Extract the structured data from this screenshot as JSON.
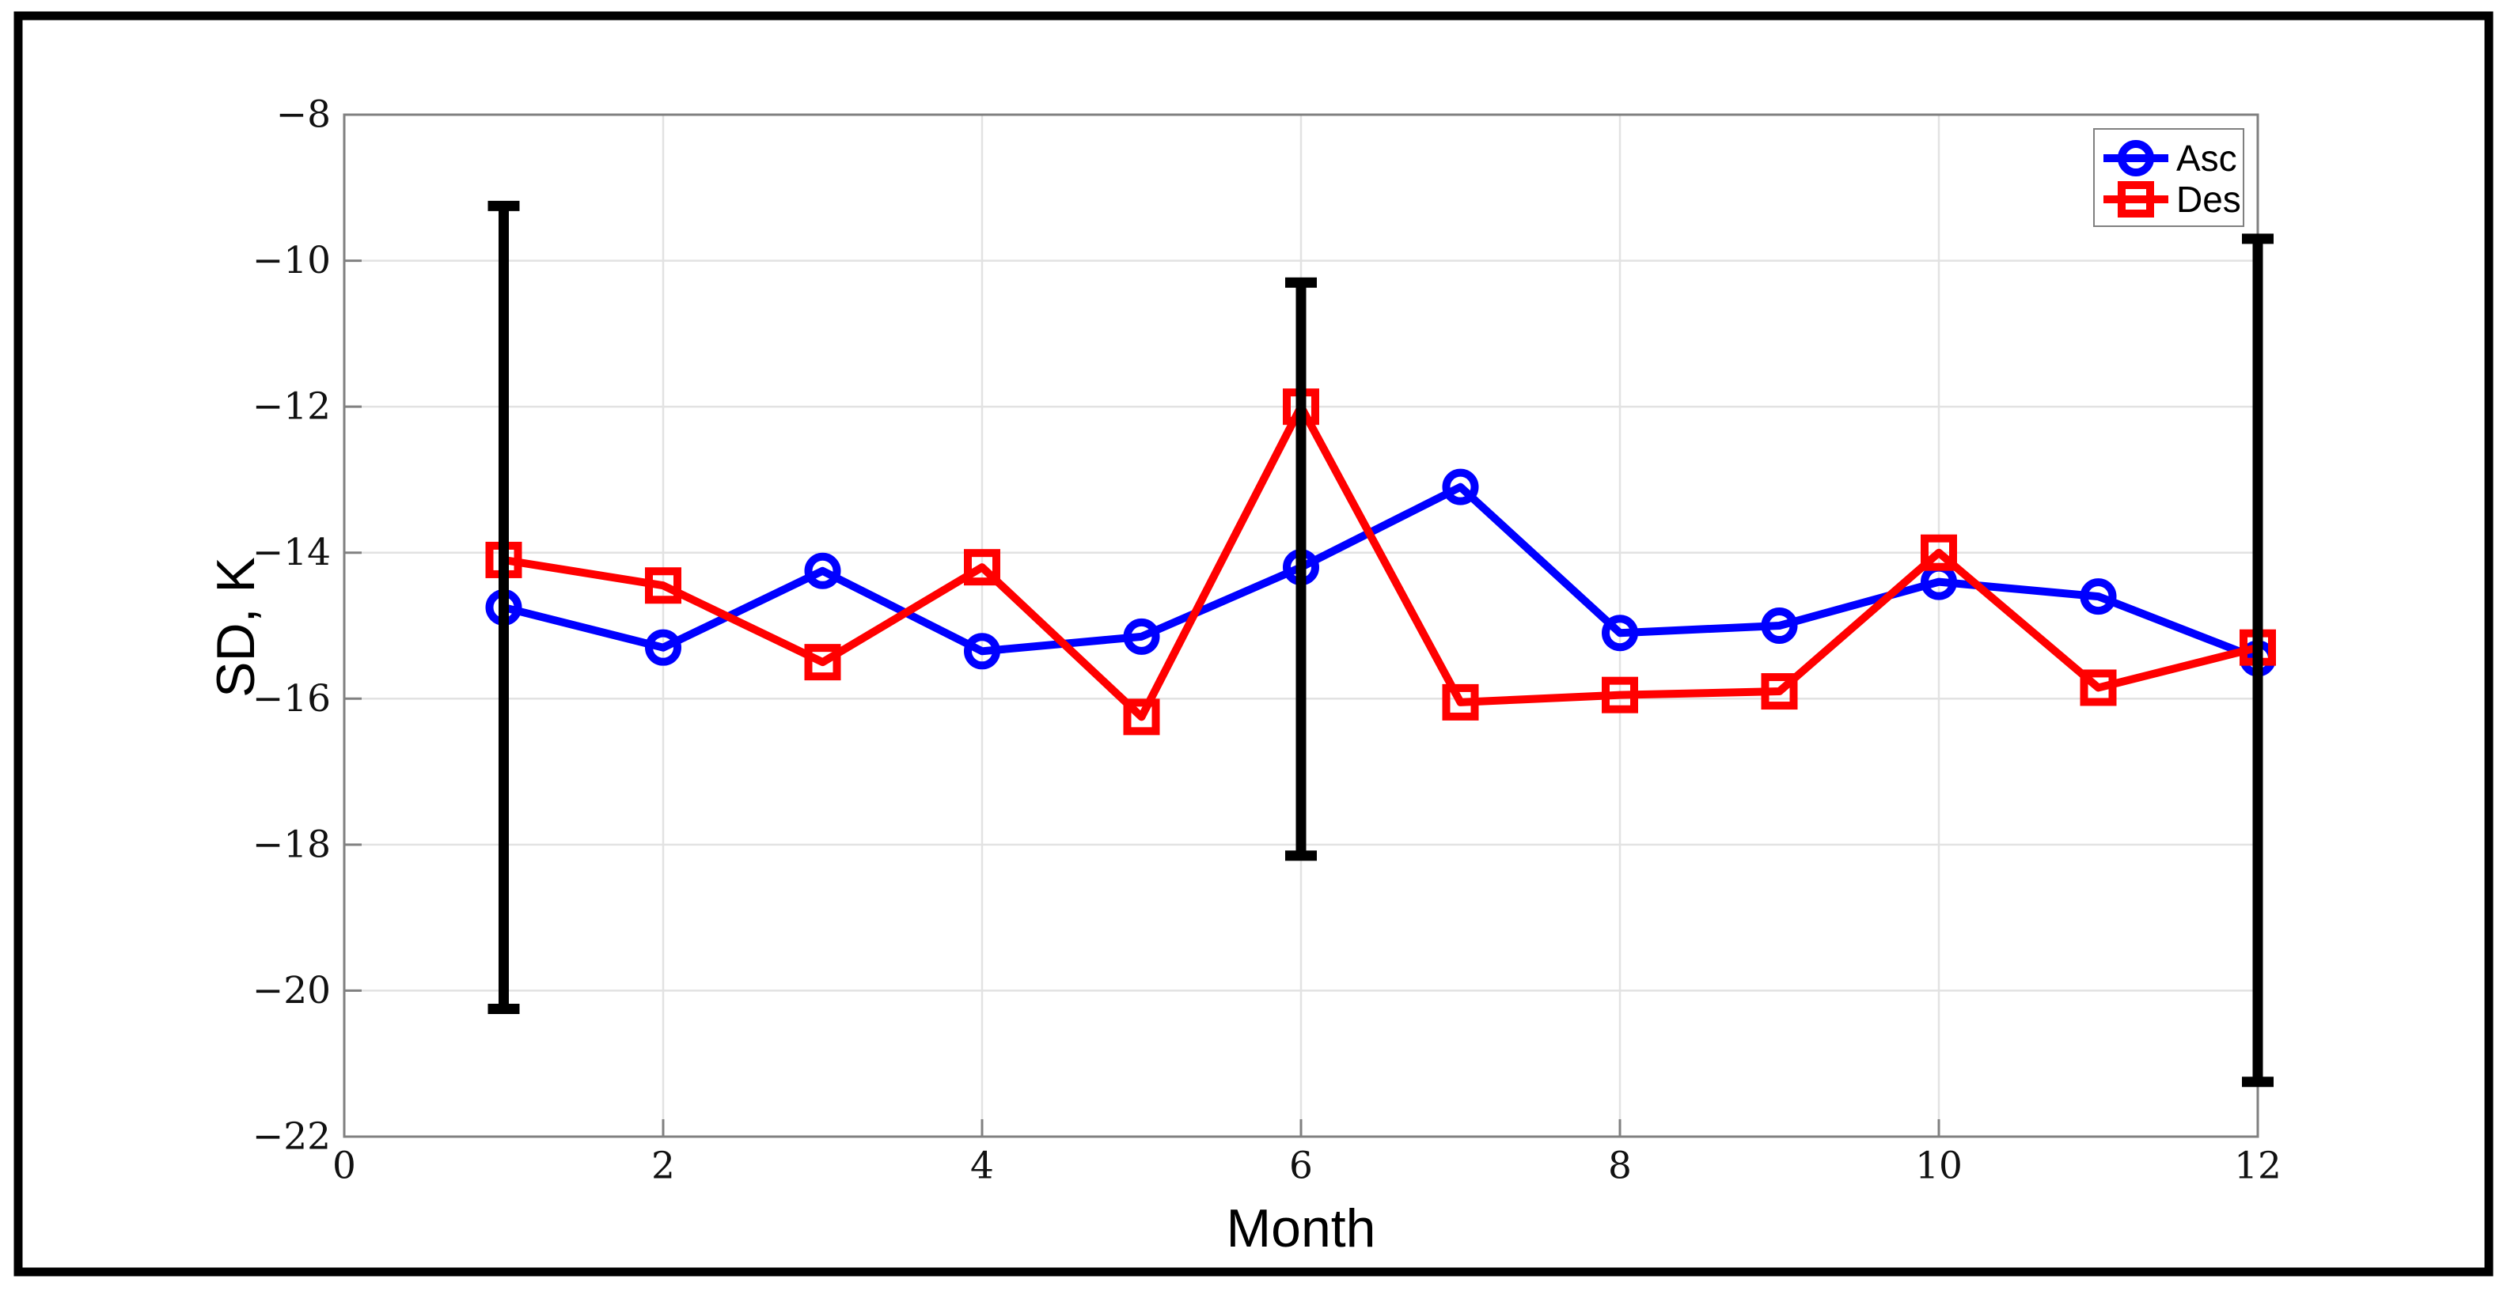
{
  "figure": {
    "background": "#ffffff",
    "border_color": "#000000"
  },
  "chart_data": {
    "type": "line",
    "title": "",
    "xlabel": "Month",
    "ylabel": "SD, K",
    "xlim": [
      0,
      12
    ],
    "ylim": [
      -22,
      -8
    ],
    "grid": true,
    "x": [
      1,
      2,
      3,
      4,
      5,
      6,
      7,
      8,
      9,
      10,
      11,
      12
    ],
    "series": [
      {
        "name": "Asc",
        "color": "#0000ff",
        "marker": "circle",
        "values": [
          -14.75,
          -15.3,
          -14.25,
          -15.35,
          -15.15,
          -14.2,
          -13.1,
          -15.1,
          -15.0,
          -14.4,
          -14.6,
          -15.45
        ]
      },
      {
        "name": "Des",
        "color": "#ff0000",
        "marker": "square",
        "values": [
          -14.1,
          -14.45,
          -15.5,
          -14.2,
          -16.25,
          -12.0,
          -16.05,
          -15.95,
          -15.9,
          -14.0,
          -15.85,
          -15.3
        ]
      }
    ],
    "error_bars": {
      "attached_to": "Asc",
      "color": "#000000",
      "points": [
        {
          "x": 1,
          "low": -20.25,
          "high": -9.25
        },
        {
          "x": 6,
          "low": -18.15,
          "high": -10.3
        },
        {
          "x": 12,
          "low": -21.25,
          "high": -9.7
        }
      ]
    },
    "xticks": {
      "values": [
        0,
        2,
        4,
        6,
        8,
        10,
        12
      ],
      "labels": [
        "0",
        "2",
        "4",
        "6",
        "8",
        "10",
        "12"
      ]
    },
    "yticks": {
      "values": [
        -8,
        -10,
        -12,
        -14,
        -16,
        -18,
        -20,
        -22
      ],
      "labels": [
        "−8",
        "−10",
        "−12",
        "−14",
        "−16",
        "−18",
        "−20",
        "−22"
      ]
    },
    "legend": {
      "position": "top-right",
      "entries": [
        {
          "label": "Asc",
          "color": "#0000ff",
          "marker": "circle"
        },
        {
          "label": "Des",
          "color": "#ff0000",
          "marker": "square"
        }
      ]
    },
    "colors": {
      "grid": "#e2e2e2",
      "axis_box": "#808080",
      "tick_text": "#111111",
      "label_text": "#000000"
    }
  }
}
